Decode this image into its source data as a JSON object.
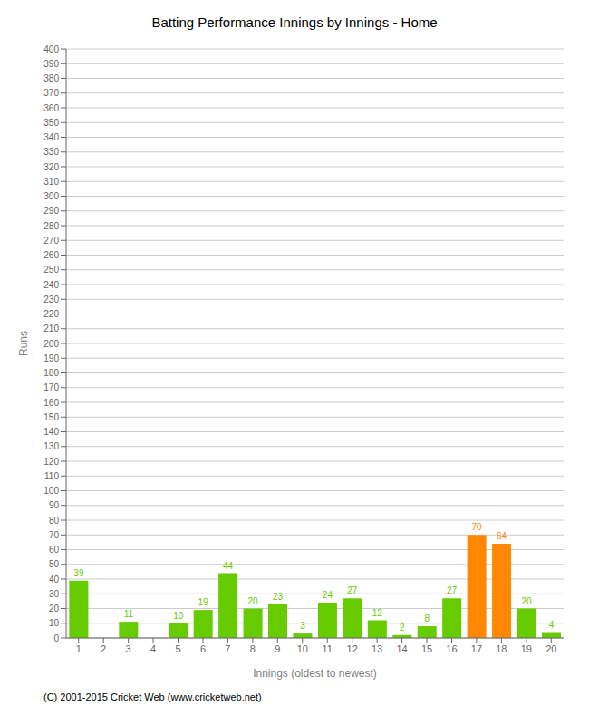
{
  "chart_data": {
    "type": "bar",
    "title": "Batting Performance Innings by Innings - Home",
    "x_label": "Innings (oldest to newest)",
    "y_label": "Runs",
    "categories": [
      1,
      2,
      3,
      4,
      5,
      6,
      7,
      8,
      9,
      10,
      11,
      12,
      13,
      14,
      15,
      16,
      17,
      18,
      19,
      20
    ],
    "values": [
      39,
      0,
      11,
      0,
      10,
      19,
      44,
      20,
      23,
      3,
      24,
      27,
      12,
      2,
      8,
      27,
      70,
      64,
      20,
      4
    ],
    "colors": [
      "#66cc00",
      "#66cc00",
      "#66cc00",
      "#66cc00",
      "#66cc00",
      "#66cc00",
      "#66cc00",
      "#66cc00",
      "#66cc00",
      "#66cc00",
      "#66cc00",
      "#66cc00",
      "#66cc00",
      "#66cc00",
      "#66cc00",
      "#66cc00",
      "#ff8800",
      "#ff8800",
      "#66cc00",
      "#66cc00"
    ],
    "ylim": [
      0,
      400
    ],
    "yticks": [
      0,
      10,
      20,
      30,
      40,
      50,
      60,
      70,
      80,
      90,
      100,
      110,
      120,
      130,
      140,
      150,
      160,
      170,
      180,
      190,
      200,
      210,
      220,
      230,
      240,
      250,
      260,
      270,
      280,
      290,
      300,
      310,
      320,
      330,
      340,
      350,
      360,
      370,
      380,
      390,
      400
    ],
    "grid": true,
    "data_labels": true,
    "annotations": [
      "(C) 2001-2015 Cricket Web (www.cricketweb.net)"
    ]
  }
}
